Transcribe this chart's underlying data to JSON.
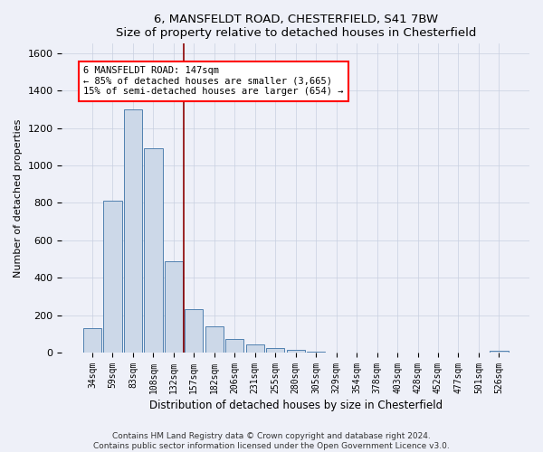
{
  "title1": "6, MANSFELDT ROAD, CHESTERFIELD, S41 7BW",
  "title2": "Size of property relative to detached houses in Chesterfield",
  "xlabel": "Distribution of detached houses by size in Chesterfield",
  "ylabel": "Number of detached properties",
  "categories": [
    "34sqm",
    "59sqm",
    "83sqm",
    "108sqm",
    "132sqm",
    "157sqm",
    "182sqm",
    "206sqm",
    "231sqm",
    "255sqm",
    "280sqm",
    "305sqm",
    "329sqm",
    "354sqm",
    "378sqm",
    "403sqm",
    "428sqm",
    "452sqm",
    "477sqm",
    "501sqm",
    "526sqm"
  ],
  "values": [
    130,
    810,
    1300,
    1090,
    490,
    230,
    140,
    75,
    45,
    25,
    15,
    5,
    2,
    1,
    1,
    0,
    0,
    0,
    0,
    0,
    12
  ],
  "bar_color": "#ccd8e8",
  "bar_edge_color": "#5080b0",
  "red_line_x": 4.5,
  "annotation_line1": "6 MANSFELDT ROAD: 147sqm",
  "annotation_line2": "← 85% of detached houses are smaller (3,665)",
  "annotation_line3": "15% of semi-detached houses are larger (654) →",
  "annotation_box_color": "white",
  "annotation_box_edge": "red",
  "ylim": [
    0,
    1650
  ],
  "yticks": [
    0,
    200,
    400,
    600,
    800,
    1000,
    1200,
    1400,
    1600
  ],
  "footer1": "Contains HM Land Registry data © Crown copyright and database right 2024.",
  "footer2": "Contains public sector information licensed under the Open Government Licence v3.0.",
  "bg_color": "#eef0f8",
  "grid_color": "#c8d0e0"
}
